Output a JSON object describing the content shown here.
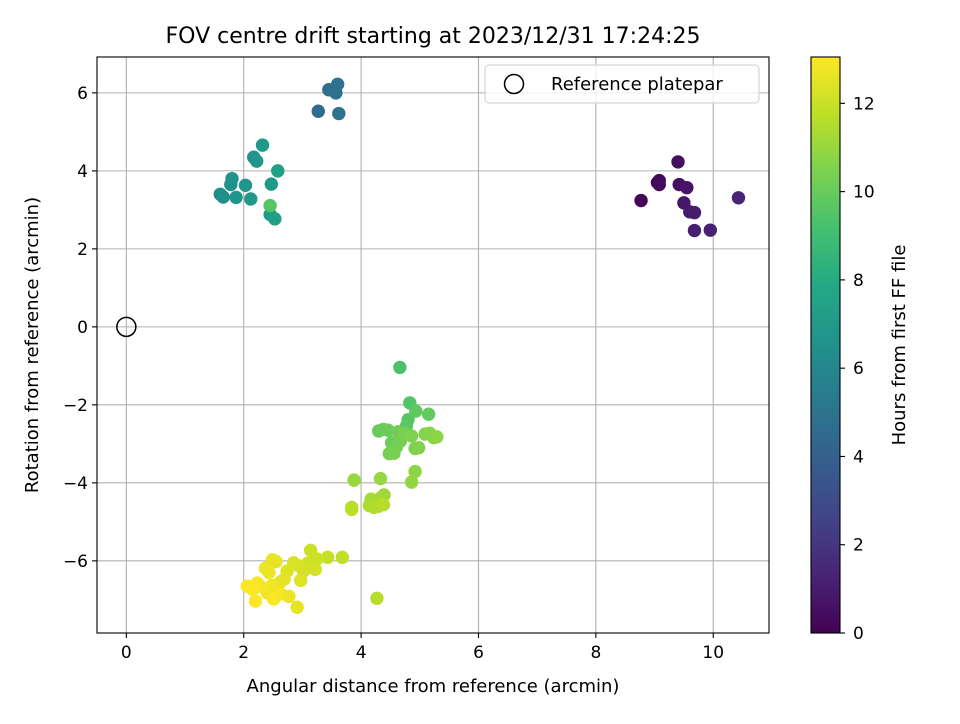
{
  "chart_data": {
    "type": "scatter",
    "title": "FOV centre drift starting at 2023/12/31 17:24:25",
    "xlabel": "Angular distance from reference (arcmin)",
    "ylabel": "Rotation from reference (arcmin)",
    "xlim": [
      -0.5,
      10.95
    ],
    "ylim": [
      -7.85,
      6.92
    ],
    "xticks": [
      0,
      2,
      4,
      6,
      8,
      10
    ],
    "yticks": [
      -6,
      -4,
      -2,
      0,
      2,
      4,
      6
    ],
    "grid": true,
    "legend": {
      "placement": "upper right",
      "entries": [
        "Reference platepar"
      ]
    },
    "reference_point": {
      "x": 0,
      "y": 0,
      "label": "Reference platepar"
    },
    "colorbar": {
      "label": "Hours from first FF file",
      "min": 0,
      "max": 13.05,
      "ticks": [
        0,
        2,
        4,
        6,
        8,
        10,
        12
      ],
      "colormap": "viridis"
    },
    "points": [
      {
        "x": 8.77,
        "y": 3.24,
        "t": 0.1
      },
      {
        "x": 9.05,
        "y": 3.7,
        "t": 0.2
      },
      {
        "x": 9.08,
        "y": 3.75,
        "t": 0.3
      },
      {
        "x": 9.08,
        "y": 3.65,
        "t": 0.4
      },
      {
        "x": 9.4,
        "y": 4.23,
        "t": 0.5
      },
      {
        "x": 9.42,
        "y": 3.65,
        "t": 0.6
      },
      {
        "x": 9.55,
        "y": 3.57,
        "t": 0.7
      },
      {
        "x": 9.5,
        "y": 3.18,
        "t": 0.8
      },
      {
        "x": 9.6,
        "y": 2.95,
        "t": 0.9
      },
      {
        "x": 9.68,
        "y": 2.93,
        "t": 1.0
      },
      {
        "x": 9.68,
        "y": 2.47,
        "t": 1.1
      },
      {
        "x": 9.95,
        "y": 2.48,
        "t": 1.2
      },
      {
        "x": 10.43,
        "y": 3.31,
        "t": 1.3
      },
      {
        "x": 3.27,
        "y": 5.53,
        "t": 4.6
      },
      {
        "x": 3.45,
        "y": 6.08,
        "t": 4.7
      },
      {
        "x": 3.57,
        "y": 6.0,
        "t": 4.8
      },
      {
        "x": 3.6,
        "y": 6.22,
        "t": 4.9
      },
      {
        "x": 3.62,
        "y": 5.47,
        "t": 5.0
      },
      {
        "x": 1.6,
        "y": 3.4,
        "t": 6.3
      },
      {
        "x": 1.65,
        "y": 3.33,
        "t": 6.4
      },
      {
        "x": 1.78,
        "y": 3.65,
        "t": 6.5
      },
      {
        "x": 1.8,
        "y": 3.8,
        "t": 6.6
      },
      {
        "x": 1.87,
        "y": 3.32,
        "t": 6.7
      },
      {
        "x": 2.03,
        "y": 3.63,
        "t": 6.8
      },
      {
        "x": 2.12,
        "y": 3.28,
        "t": 6.9
      },
      {
        "x": 2.17,
        "y": 4.35,
        "t": 6.6
      },
      {
        "x": 2.22,
        "y": 4.25,
        "t": 6.8
      },
      {
        "x": 2.32,
        "y": 4.66,
        "t": 7.0
      },
      {
        "x": 2.45,
        "y": 2.88,
        "t": 7.1
      },
      {
        "x": 2.47,
        "y": 3.66,
        "t": 7.0
      },
      {
        "x": 2.53,
        "y": 2.77,
        "t": 7.2
      },
      {
        "x": 2.58,
        "y": 4.0,
        "t": 7.3
      },
      {
        "x": 2.45,
        "y": 3.11,
        "t": 9.6
      },
      {
        "x": 4.66,
        "y": -1.04,
        "t": 9.3
      },
      {
        "x": 4.83,
        "y": -1.95,
        "t": 9.5
      },
      {
        "x": 4.8,
        "y": -2.38,
        "t": 9.6
      },
      {
        "x": 4.77,
        "y": -2.55,
        "t": 9.7
      },
      {
        "x": 4.93,
        "y": -2.16,
        "t": 9.8
      },
      {
        "x": 5.15,
        "y": -2.24,
        "t": 9.9
      },
      {
        "x": 4.3,
        "y": -2.67,
        "t": 10.0
      },
      {
        "x": 4.38,
        "y": -2.63,
        "t": 10.0
      },
      {
        "x": 4.46,
        "y": -2.65,
        "t": 10.1
      },
      {
        "x": 4.52,
        "y": -2.97,
        "t": 10.1
      },
      {
        "x": 4.6,
        "y": -3.08,
        "t": 10.2
      },
      {
        "x": 4.63,
        "y": -2.69,
        "t": 10.2
      },
      {
        "x": 4.67,
        "y": -2.93,
        "t": 10.3
      },
      {
        "x": 4.48,
        "y": -3.25,
        "t": 10.3
      },
      {
        "x": 4.56,
        "y": -3.24,
        "t": 10.4
      },
      {
        "x": 4.74,
        "y": -2.73,
        "t": 10.4
      },
      {
        "x": 4.86,
        "y": -2.8,
        "t": 10.5
      },
      {
        "x": 4.92,
        "y": -3.12,
        "t": 10.5
      },
      {
        "x": 4.98,
        "y": -3.1,
        "t": 10.6
      },
      {
        "x": 5.09,
        "y": -2.75,
        "t": 10.6
      },
      {
        "x": 5.17,
        "y": -2.73,
        "t": 10.7
      },
      {
        "x": 5.24,
        "y": -2.84,
        "t": 10.7
      },
      {
        "x": 5.29,
        "y": -2.82,
        "t": 10.8
      },
      {
        "x": 4.92,
        "y": -3.71,
        "t": 10.8
      },
      {
        "x": 4.86,
        "y": -3.98,
        "t": 10.9
      },
      {
        "x": 3.88,
        "y": -3.93,
        "t": 11.0
      },
      {
        "x": 4.33,
        "y": -3.89,
        "t": 11.0
      },
      {
        "x": 4.39,
        "y": -4.31,
        "t": 11.1
      },
      {
        "x": 4.33,
        "y": -4.39,
        "t": 11.2
      },
      {
        "x": 4.17,
        "y": -4.42,
        "t": 11.3
      },
      {
        "x": 4.14,
        "y": -4.58,
        "t": 11.4
      },
      {
        "x": 4.22,
        "y": -4.63,
        "t": 11.5
      },
      {
        "x": 4.3,
        "y": -4.6,
        "t": 11.5
      },
      {
        "x": 4.38,
        "y": -4.56,
        "t": 11.6
      },
      {
        "x": 3.84,
        "y": -4.63,
        "t": 11.6
      },
      {
        "x": 3.84,
        "y": -4.68,
        "t": 11.7
      },
      {
        "x": 3.68,
        "y": -5.91,
        "t": 11.8
      },
      {
        "x": 3.43,
        "y": -5.91,
        "t": 11.9
      },
      {
        "x": 3.25,
        "y": -5.95,
        "t": 12.0
      },
      {
        "x": 3.14,
        "y": -5.73,
        "t": 12.0
      },
      {
        "x": 3.09,
        "y": -6.06,
        "t": 12.1
      },
      {
        "x": 3.02,
        "y": -6.26,
        "t": 12.2
      },
      {
        "x": 3.22,
        "y": -6.22,
        "t": 12.2
      },
      {
        "x": 2.91,
        "y": -6.11,
        "t": 12.3
      },
      {
        "x": 2.85,
        "y": -6.05,
        "t": 12.3
      },
      {
        "x": 2.97,
        "y": -6.5,
        "t": 12.4
      },
      {
        "x": 2.74,
        "y": -6.26,
        "t": 12.4
      },
      {
        "x": 2.69,
        "y": -6.47,
        "t": 12.5
      },
      {
        "x": 2.62,
        "y": -6.55,
        "t": 12.5
      },
      {
        "x": 2.55,
        "y": -6.02,
        "t": 12.6
      },
      {
        "x": 2.49,
        "y": -5.97,
        "t": 12.6
      },
      {
        "x": 2.43,
        "y": -6.3,
        "t": 12.7
      },
      {
        "x": 2.37,
        "y": -6.19,
        "t": 12.7
      },
      {
        "x": 2.48,
        "y": -6.63,
        "t": 12.8
      },
      {
        "x": 2.53,
        "y": -6.77,
        "t": 12.8
      },
      {
        "x": 2.4,
        "y": -6.82,
        "t": 12.8
      },
      {
        "x": 2.28,
        "y": -6.65,
        "t": 12.9
      },
      {
        "x": 2.23,
        "y": -6.57,
        "t": 12.9
      },
      {
        "x": 2.18,
        "y": -6.7,
        "t": 12.9
      },
      {
        "x": 2.06,
        "y": -6.65,
        "t": 13.0
      },
      {
        "x": 2.14,
        "y": -6.72,
        "t": 13.0
      },
      {
        "x": 2.2,
        "y": -7.03,
        "t": 13.0
      },
      {
        "x": 2.51,
        "y": -6.98,
        "t": 13.0
      },
      {
        "x": 2.63,
        "y": -6.85,
        "t": 12.9
      },
      {
        "x": 2.77,
        "y": -6.91,
        "t": 12.7
      },
      {
        "x": 2.91,
        "y": -7.19,
        "t": 12.6
      },
      {
        "x": 4.27,
        "y": -6.96,
        "t": 11.6
      }
    ]
  }
}
